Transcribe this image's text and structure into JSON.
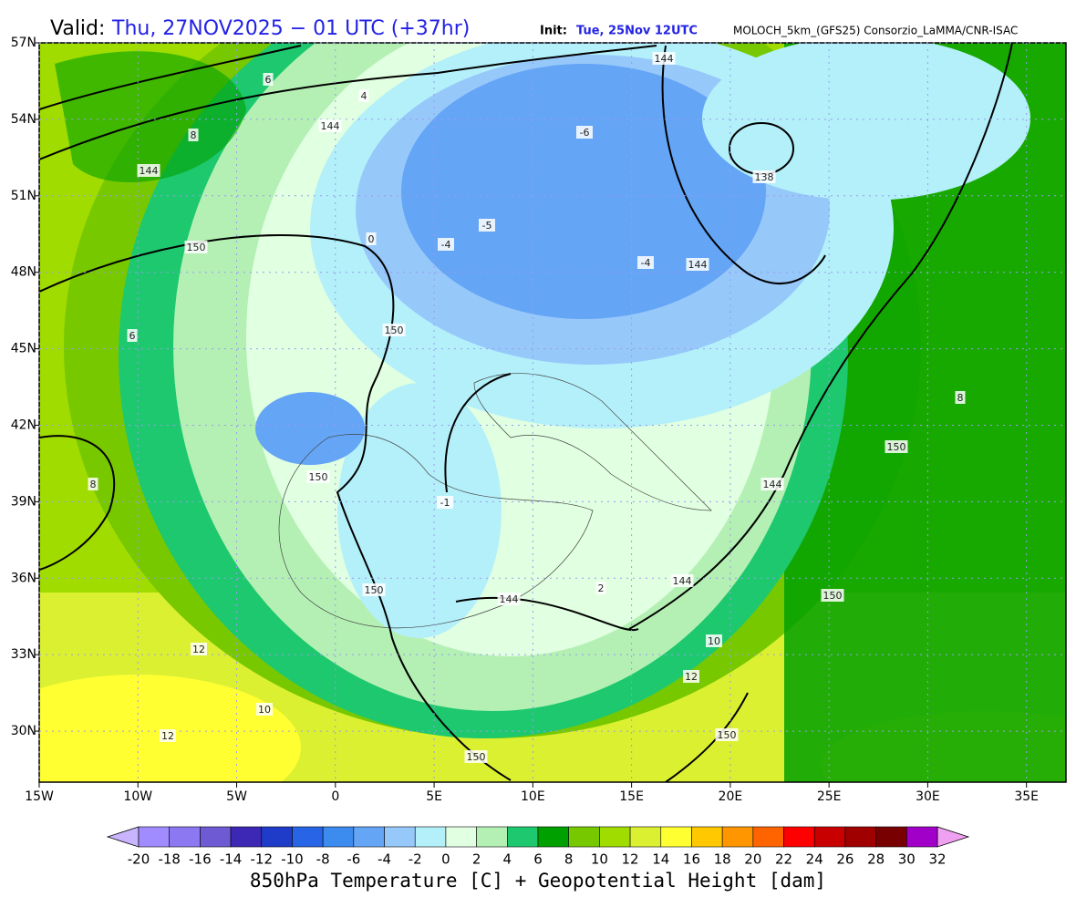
{
  "header": {
    "valid_prefix": "Valid:",
    "valid_time": "Thu, 27NOV2025 − 01 UTC (+37hr)",
    "init_prefix": "Init:",
    "init_time": "Tue, 25Nov 12UTC",
    "model": "MOLOCH_5km_(GFS25) Consorzio_LaMMA/CNR-ISAC"
  },
  "map": {
    "xlim": [
      -15,
      37
    ],
    "ylim": [
      28,
      57
    ],
    "xticks": [
      {
        "value": -15,
        "label": "15W"
      },
      {
        "value": -10,
        "label": "10W"
      },
      {
        "value": -5,
        "label": "5W"
      },
      0,
      {
        "value": 5,
        "label": "5E"
      },
      {
        "value": 10,
        "label": "10E"
      },
      {
        "value": 15,
        "label": "15E"
      },
      {
        "value": 20,
        "label": "20E"
      },
      {
        "value": 25,
        "label": "25E"
      },
      {
        "value": 30,
        "label": "30E"
      },
      {
        "value": 35,
        "label": "35E"
      }
    ],
    "yticks": [
      {
        "value": 57,
        "label": "57N"
      },
      {
        "value": 54,
        "label": "54N"
      },
      {
        "value": 51,
        "label": "51N"
      },
      {
        "value": 48,
        "label": "48N"
      },
      {
        "value": 45,
        "label": "45N"
      },
      {
        "value": 42,
        "label": "42N"
      },
      {
        "value": 39,
        "label": "39N"
      },
      {
        "value": 36,
        "label": "36N"
      },
      {
        "value": 33,
        "label": "33N"
      },
      {
        "value": 30,
        "label": "30N"
      }
    ],
    "grid": true,
    "height_labels": [
      144,
      144,
      150,
      150,
      144,
      138,
      144,
      150,
      144,
      144,
      150,
      150,
      150,
      150,
      144,
      150
    ],
    "temperature_labels": [
      -6,
      -5,
      -4,
      -4,
      8,
      6,
      12,
      12,
      10,
      8,
      2,
      -1,
      0,
      4,
      6,
      8,
      12,
      10
    ]
  },
  "colorbar": {
    "ticks": [
      -20,
      -18,
      -16,
      -14,
      -12,
      -10,
      -8,
      -6,
      -4,
      -2,
      0,
      2,
      4,
      6,
      8,
      10,
      12,
      14,
      16,
      18,
      20,
      22,
      24,
      26,
      28,
      30,
      32
    ],
    "under_color": "#c8b4ff",
    "over_color": "#f0a0f0",
    "colors": [
      "#a08cff",
      "#8c78f0",
      "#6e5ad2",
      "#3c28b4",
      "#1e3cc8",
      "#2864e6",
      "#3c8cf0",
      "#64a5f5",
      "#96c8fa",
      "#b4f0fa",
      "#e1ffe1",
      "#b4f0b4",
      "#1ec86e",
      "#00a000",
      "#78c800",
      "#a0dc00",
      "#dcf032",
      "#ffff32",
      "#ffc800",
      "#ff9600",
      "#ff6400",
      "#ff0000",
      "#c80000",
      "#a00000",
      "#780000",
      "#a000c8"
    ],
    "label": "850hPa Temperature [C] + Geopotential Height [dam]"
  }
}
